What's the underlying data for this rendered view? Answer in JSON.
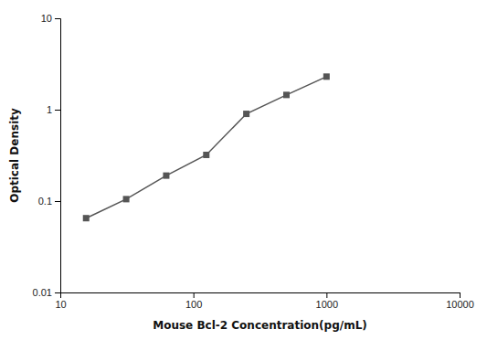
{
  "chart_data": {
    "type": "line",
    "x": [
      15.625,
      31.25,
      62.5,
      125,
      250,
      500,
      1000
    ],
    "values": [
      0.065,
      0.105,
      0.19,
      0.32,
      0.9,
      1.45,
      2.3
    ],
    "xlabel": "Mouse Bcl-2 Concentration(pg/mL)",
    "ylabel": "Optical Density",
    "log": true,
    "xlim": [
      10,
      10000
    ],
    "ylim": [
      0.01,
      10
    ],
    "xticks": [
      10,
      100,
      1000,
      10000
    ],
    "yticks": [
      0.01,
      0.1,
      1,
      10
    ],
    "grid": false,
    "color": "#555555",
    "marker": "square"
  }
}
